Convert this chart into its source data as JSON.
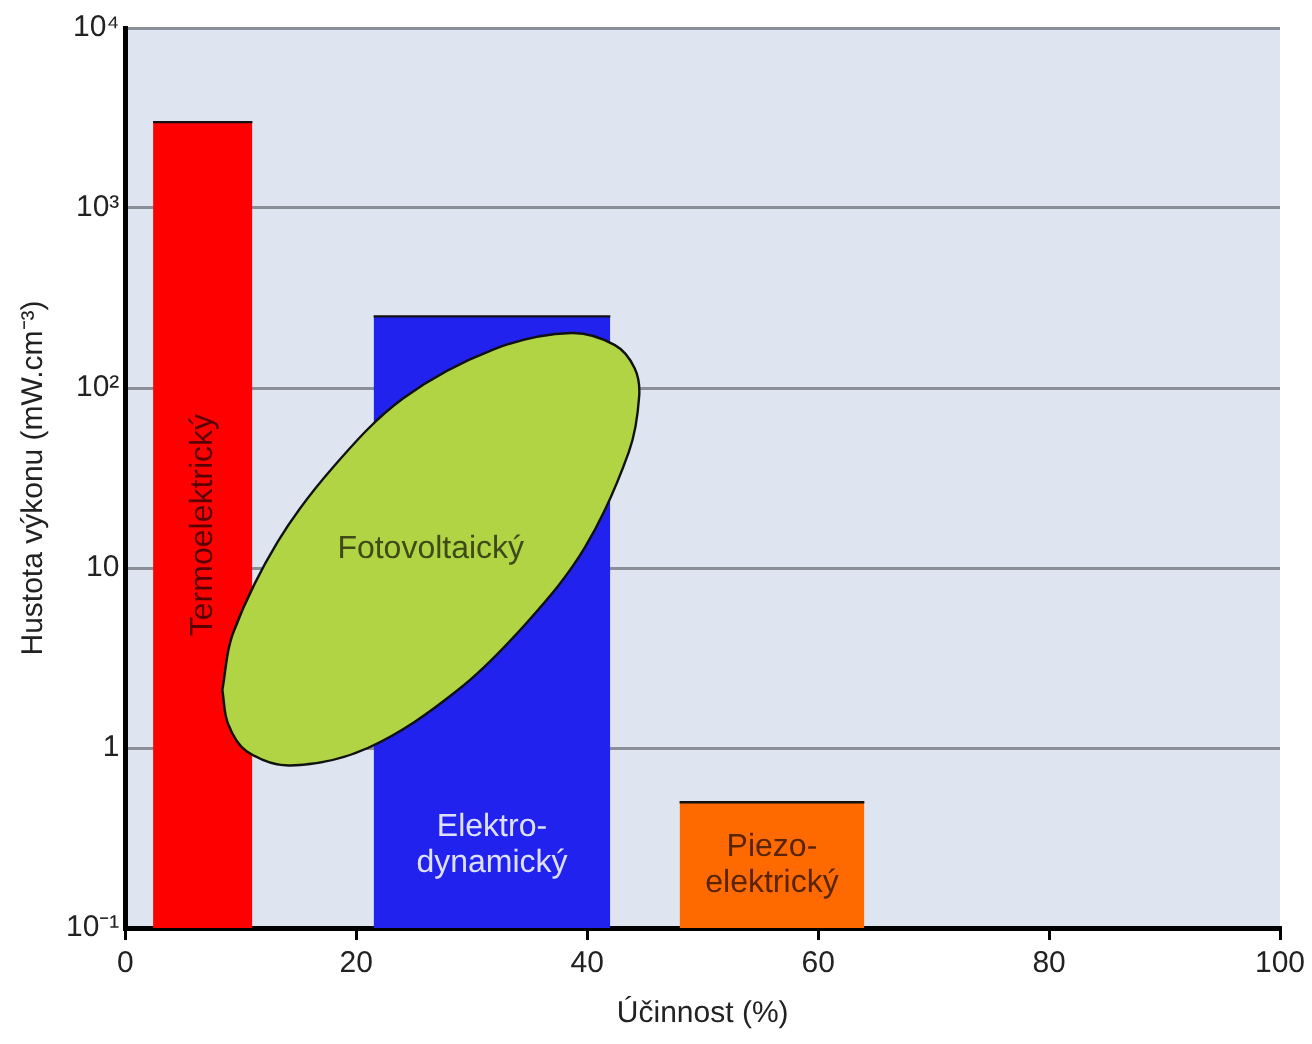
{
  "chart_data": {
    "type": "area",
    "xlabel": "Účinnost (%)",
    "ylabel": "Hustota výkonu (mW.cm⁻³)",
    "log": "y",
    "grid": "y",
    "xlim": [
      0,
      100
    ],
    "xticks": [
      0,
      20,
      40,
      60,
      80,
      100
    ],
    "ylim": [
      0.1,
      10000
    ],
    "yticks": [
      {
        "value": 0.1,
        "label": "10⁻¹"
      },
      1,
      10,
      {
        "value": 100,
        "label": "10²"
      },
      {
        "value": 1000,
        "label": "10³"
      },
      {
        "value": 10000,
        "label": "10⁴"
      }
    ],
    "series": [
      {
        "name": "Termoelektrický",
        "color": "#ff0000",
        "x": [
          2.4,
          11
        ],
        "values": [
          3000,
          3000
        ]
      },
      {
        "name": "Elektro-\ndynamický",
        "color": "#2222ee",
        "x": [
          21.5,
          42
        ],
        "values": [
          250,
          250
        ]
      },
      {
        "name": "Fotovoltaický",
        "color": "#b0d444",
        "x": [
          8.4,
          9.3,
          13.2,
          18.1,
          24.1,
          31.9,
          38.6,
          42.4,
          44.1,
          44.5,
          43.6,
          39.8,
          34.8,
          28.8,
          21,
          14.3,
          10.5,
          8.9,
          8.4
        ],
        "values": [
          2.1,
          4.3,
          14,
          37,
          88,
          164,
          202,
          173,
          129,
          90,
          44,
          13,
          5,
          2.1,
          1,
          0.8,
          0.96,
          1.36,
          2.1
        ]
      },
      {
        "name": "Piezo-\nelektrický",
        "color": "#ff6a00",
        "x": [
          48,
          64
        ],
        "values": [
          0.5,
          0.5
        ]
      }
    ]
  }
}
